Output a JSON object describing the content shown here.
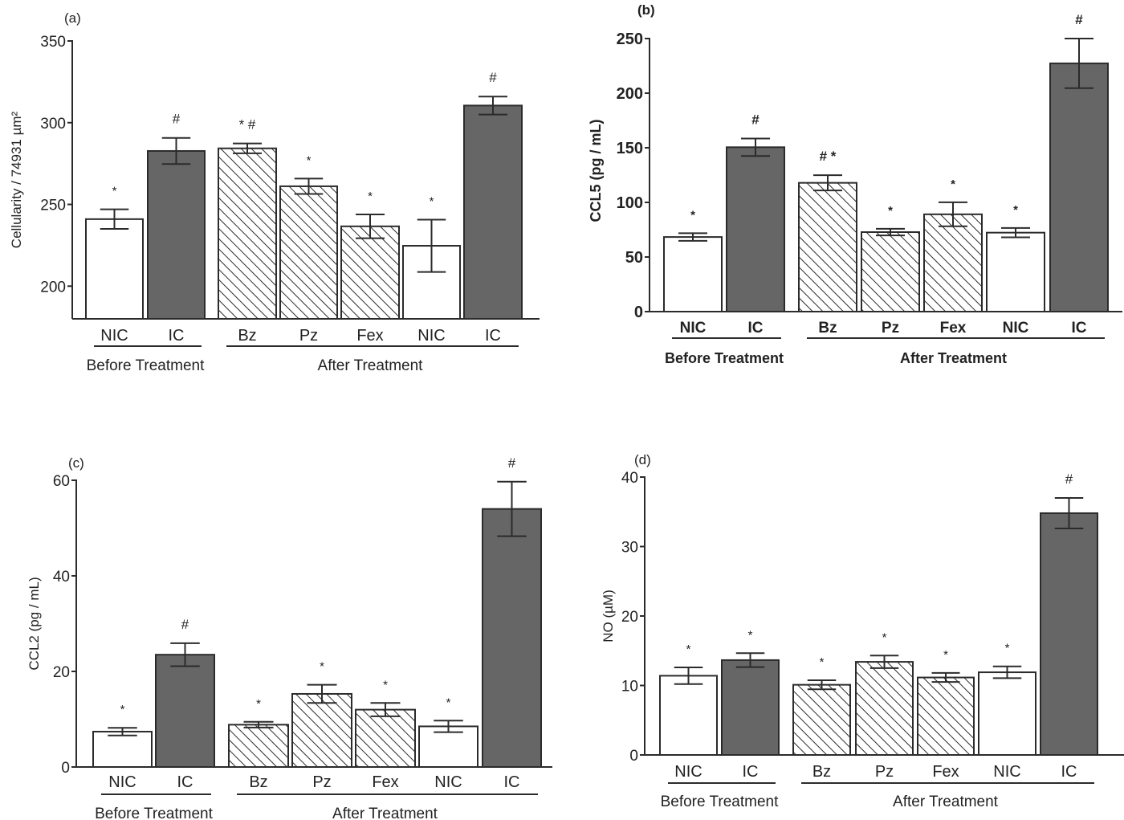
{
  "colors": {
    "ic_fill": "#666666",
    "nic_fill": "#ffffff",
    "stroke": "#2b2b2b",
    "hatch": "#2b2b2b"
  },
  "chart_data": [
    {
      "type": "bar",
      "panel_label": "(a)",
      "ylabel": "Cellularity / 74931  µm²",
      "ylim": [
        180,
        350
      ],
      "yticks": [
        200,
        250,
        300,
        350
      ],
      "categories": [
        "NIC",
        "IC",
        "Bz",
        "Pz",
        "Fex",
        "NIC",
        "IC"
      ],
      "fills": [
        "white",
        "dark",
        "hatch",
        "hatch",
        "hatch",
        "white",
        "dark"
      ],
      "groups": [
        {
          "label": "Before Treatment",
          "span": [
            0,
            1
          ]
        },
        {
          "label": "After Treatment",
          "span": [
            2,
            6
          ]
        }
      ],
      "values": [
        241,
        282.7,
        284.3,
        261.1,
        236.6,
        224.7,
        310.5
      ],
      "errors": [
        6,
        8,
        3,
        4.7,
        7.3,
        16,
        5.5
      ],
      "annotations": [
        "*",
        "#",
        "* #",
        "*",
        "*",
        "*",
        "#"
      ],
      "grid": false
    },
    {
      "type": "bar",
      "panel_label": "(b)",
      "ylabel": "CCL5 (pg / mL)",
      "ylim": [
        0,
        250
      ],
      "yticks": [
        0,
        50,
        100,
        150,
        200,
        250
      ],
      "categories": [
        "NIC",
        "IC",
        "Bz",
        "Pz",
        "Fex",
        "NIC",
        "IC"
      ],
      "fills": [
        "white",
        "dark",
        "hatch",
        "hatch",
        "hatch",
        "white",
        "dark"
      ],
      "groups": [
        {
          "label": "Before Treatment",
          "span": [
            0,
            1
          ]
        },
        {
          "label": "After Treatment",
          "span": [
            2,
            6
          ]
        }
      ],
      "values": [
        68.3,
        150.5,
        117.9,
        72.8,
        89.1,
        72.3,
        227.3
      ],
      "errors": [
        3.5,
        8,
        7,
        3,
        11,
        4.3,
        22.7
      ],
      "annotations": [
        "*",
        "#",
        "# *",
        "*",
        "*",
        "*",
        "#"
      ],
      "grid": false
    },
    {
      "type": "bar",
      "panel_label": "(c)",
      "ylabel": "CCL2 (pg / mL)",
      "ylim": [
        0,
        60
      ],
      "yticks": [
        0,
        20,
        40,
        60
      ],
      "categories": [
        "NIC",
        "IC",
        "Bz",
        "Pz",
        "Fex",
        "NIC",
        "IC"
      ],
      "fills": [
        "white",
        "dark",
        "hatch",
        "hatch",
        "hatch",
        "white",
        "dark"
      ],
      "groups": [
        {
          "label": "Before Treatment",
          "span": [
            0,
            1
          ]
        },
        {
          "label": "After Treatment",
          "span": [
            2,
            6
          ]
        }
      ],
      "values": [
        7.4,
        23.5,
        8.85,
        15.3,
        12.0,
        8.5,
        54.0
      ],
      "errors": [
        0.8,
        2.4,
        0.6,
        1.9,
        1.4,
        1.2,
        5.7
      ],
      "annotations": [
        "*",
        "#",
        "*",
        "*",
        "*",
        "*",
        "#"
      ],
      "grid": false
    },
    {
      "type": "bar",
      "panel_label": "(d)",
      "ylabel": "NO (µM)",
      "ylim": [
        0,
        40
      ],
      "yticks": [
        0,
        10,
        20,
        30,
        40
      ],
      "categories": [
        "NIC",
        "IC",
        "Bz",
        "Pz",
        "Fex",
        "NIC",
        "IC"
      ],
      "fills": [
        "white",
        "dark",
        "hatch",
        "hatch",
        "hatch",
        "white",
        "dark"
      ],
      "groups": [
        {
          "label": "Before Treatment",
          "span": [
            0,
            1
          ]
        },
        {
          "label": "After Treatment",
          "span": [
            2,
            6
          ]
        }
      ],
      "values": [
        11.4,
        13.65,
        10.1,
        13.4,
        11.15,
        11.9,
        34.8
      ],
      "errors": [
        1.2,
        1.0,
        0.65,
        0.9,
        0.65,
        0.85,
        2.2
      ],
      "annotations": [
        "*",
        "*",
        "*",
        "*",
        "*",
        "*",
        "#"
      ],
      "grid": false
    }
  ]
}
